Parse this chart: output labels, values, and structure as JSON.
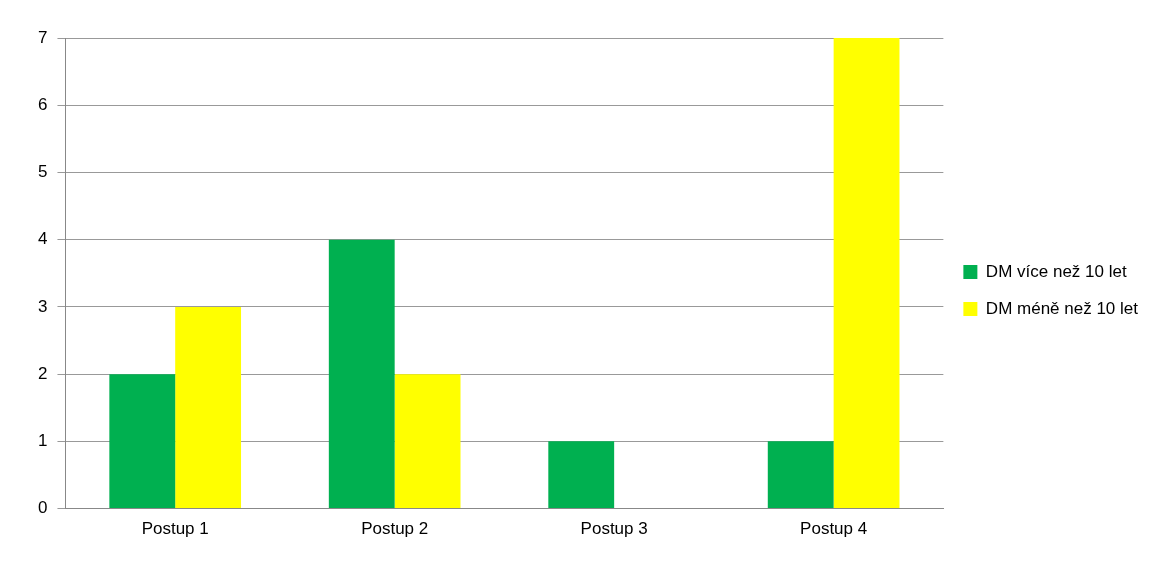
{
  "chart_data": {
    "type": "bar",
    "categories": [
      "Postup 1",
      "Postup 2",
      "Postup 3",
      "Postup 4"
    ],
    "series": [
      {
        "name": "DM více než 10 let",
        "color": "#00b050",
        "values": [
          2,
          4,
          1,
          1
        ]
      },
      {
        "name": "DM méně než 10 let",
        "color": "#ffff00",
        "values": [
          3,
          2,
          0,
          7
        ]
      }
    ],
    "ylim": [
      0,
      7
    ],
    "yticks": [
      0,
      1,
      2,
      3,
      4,
      5,
      6,
      7
    ],
    "grid": "y",
    "legend": "right"
  }
}
